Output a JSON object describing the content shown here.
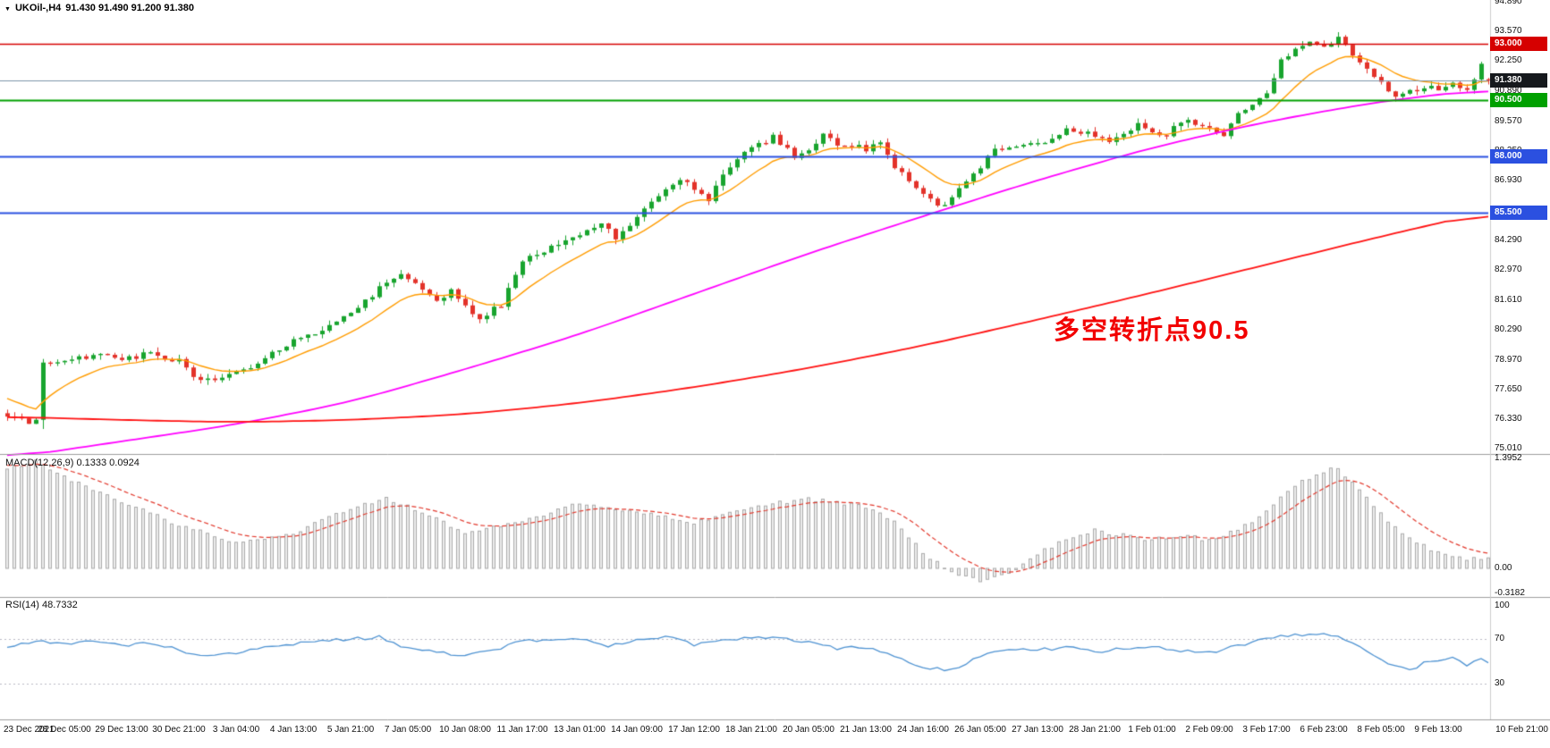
{
  "header": {
    "dropdown_icon": "▼",
    "symbol_period": "UKOil-,H4",
    "ohlc": "91.430 91.490 91.200 91.380"
  },
  "annotation": {
    "text": "多空转折点90.5",
    "color": "#f20000"
  },
  "panes": {
    "macd": {
      "label": "MACD(12,26,9) 0.1333 0.0924"
    },
    "rsi": {
      "label": "RSI(14) 48.7332"
    }
  },
  "colors": {
    "background": "#ffffff",
    "candle_up": "#18a42e",
    "candle_down": "#e3322a",
    "pane_border": "#9e9e9e",
    "axis_separator": "#cccccc",
    "axis_text": "#111111"
  },
  "chart_data": {
    "type": "candlestick",
    "symbol": "UKOil-",
    "timeframe": "H4",
    "current_ohlc": {
      "open": 91.43,
      "high": 91.49,
      "low": 91.2,
      "close": 91.38
    },
    "y_axis": {
      "ticks": [
        {
          "label": "94.890",
          "value": 94.89
        },
        {
          "label": "93.570",
          "value": 93.57
        },
        {
          "label": "92.250",
          "value": 92.25
        },
        {
          "label": "90.890",
          "value": 90.89
        },
        {
          "label": "89.570",
          "value": 89.57
        },
        {
          "label": "88.250",
          "value": 88.25
        },
        {
          "label": "86.930",
          "value": 86.93
        },
        {
          "label": "85.610",
          "value": 85.61
        },
        {
          "label": "84.290",
          "value": 84.29
        },
        {
          "label": "82.970",
          "value": 82.97
        },
        {
          "label": "81.610",
          "value": 81.61
        },
        {
          "label": "80.290",
          "value": 80.29
        },
        {
          "label": "78.970",
          "value": 78.97
        },
        {
          "label": "77.650",
          "value": 77.65
        },
        {
          "label": "76.330",
          "value": 76.33
        },
        {
          "label": "75.010",
          "value": 75.01
        }
      ],
      "badges": [
        {
          "label": "93.000",
          "value": 93.0,
          "bg": "#d60000"
        },
        {
          "label": "91.380",
          "value": 91.38,
          "bg": "#16191d"
        },
        {
          "label": "90.500",
          "value": 90.5,
          "bg": "#00a000"
        },
        {
          "label": "88.000",
          "value": 88.0,
          "bg": "#2b50e0"
        },
        {
          "label": "85.500",
          "value": 85.5,
          "bg": "#2b50e0"
        }
      ]
    },
    "x_axis": {
      "candles_per_label": 8,
      "labels": [
        "23 Dec 2021",
        "28 Dec 05:00",
        "29 Dec 13:00",
        "30 Dec 21:00",
        "3 Jan 04:00",
        "4 Jan 13:00",
        "5 Jan 21:00",
        "7 Jan 05:00",
        "10 Jan 08:00",
        "11 Jan 17:00",
        "13 Jan 01:00",
        "14 Jan 09:00",
        "17 Jan 12:00",
        "18 Jan 21:00",
        "20 Jan 05:00",
        "21 Jan 13:00",
        "24 Jan 16:00",
        "26 Jan 05:00",
        "27 Jan 13:00",
        "28 Jan 21:00",
        "1 Feb 01:00",
        "2 Feb 09:00",
        "3 Feb 17:00",
        "6 Feb 23:00",
        "8 Feb 05:00",
        "9 Feb 13:00",
        "10 Feb 21:00"
      ]
    },
    "candles": {
      "count": 208,
      "path_anchors": [
        [
          0,
          76.45
        ],
        [
          2,
          76.3
        ],
        [
          4,
          76.2
        ],
        [
          5,
          78.85
        ],
        [
          8,
          78.95
        ],
        [
          12,
          79.15
        ],
        [
          16,
          79.0
        ],
        [
          20,
          79.25
        ],
        [
          24,
          78.95
        ],
        [
          26,
          78.25
        ],
        [
          29,
          78.05
        ],
        [
          32,
          78.35
        ],
        [
          36,
          79.05
        ],
        [
          40,
          79.85
        ],
        [
          44,
          80.35
        ],
        [
          48,
          81.05
        ],
        [
          52,
          82.15
        ],
        [
          55,
          82.9
        ],
        [
          57,
          82.45
        ],
        [
          60,
          81.65
        ],
        [
          62,
          82.05
        ],
        [
          64,
          81.3
        ],
        [
          66,
          80.85
        ],
        [
          69,
          81.45
        ],
        [
          72,
          83.3
        ],
        [
          76,
          83.95
        ],
        [
          80,
          84.6
        ],
        [
          83,
          85.05
        ],
        [
          85,
          84.35
        ],
        [
          88,
          85.35
        ],
        [
          92,
          86.5
        ],
        [
          94,
          86.9
        ],
        [
          96,
          86.6
        ],
        [
          98,
          86.05
        ],
        [
          100,
          87.3
        ],
        [
          104,
          88.35
        ],
        [
          107,
          88.85
        ],
        [
          110,
          88.05
        ],
        [
          112,
          88.35
        ],
        [
          114,
          88.95
        ],
        [
          116,
          88.5
        ],
        [
          120,
          88.35
        ],
        [
          122,
          88.75
        ],
        [
          124,
          87.6
        ],
        [
          128,
          86.3
        ],
        [
          130,
          85.75
        ],
        [
          132,
          86.15
        ],
        [
          136,
          87.5
        ],
        [
          138,
          88.3
        ],
        [
          144,
          88.55
        ],
        [
          148,
          89.2
        ],
        [
          152,
          89.0
        ],
        [
          154,
          88.65
        ],
        [
          158,
          89.45
        ],
        [
          162,
          88.95
        ],
        [
          164,
          89.6
        ],
        [
          168,
          89.2
        ],
        [
          170,
          88.95
        ],
        [
          172,
          89.9
        ],
        [
          176,
          90.9
        ],
        [
          178,
          92.3
        ],
        [
          180,
          92.85
        ],
        [
          182,
          93.05
        ],
        [
          184,
          92.9
        ],
        [
          186,
          93.2
        ],
        [
          188,
          92.6
        ],
        [
          190,
          92.0
        ],
        [
          192,
          91.2
        ],
        [
          194,
          90.65
        ],
        [
          196,
          90.95
        ],
        [
          198,
          91.1
        ],
        [
          200,
          91.0
        ],
        [
          202,
          91.35
        ],
        [
          204,
          90.85
        ],
        [
          206,
          92.1
        ],
        [
          207,
          91.38
        ]
      ]
    },
    "levels": [
      {
        "label": "93.000",
        "price": 93.0,
        "color": "#d60000",
        "width": 1.4
      },
      {
        "label": "91.380",
        "price": 91.38,
        "color": "#7d96aa",
        "width": 1,
        "role": "current-price"
      },
      {
        "label": "90.500",
        "price": 90.5,
        "color": "#00a000",
        "width": 2
      },
      {
        "label": "88.000",
        "price": 88.0,
        "color": "#2b50e0",
        "width": 2.2
      },
      {
        "label": "85.500",
        "price": 85.5,
        "color": "#2b50e0",
        "width": 2.2
      }
    ],
    "moving_averages": [
      {
        "name": "ma-fast",
        "color": "#ff9c00",
        "width": 1.4,
        "period": 12,
        "seed": 77.4
      },
      {
        "name": "ma-medium",
        "color": "#ff00ff",
        "width": 1.8,
        "anchors": [
          [
            0,
            74.6
          ],
          [
            16,
            75.35
          ],
          [
            32,
            76.1
          ],
          [
            48,
            77.1
          ],
          [
            64,
            78.55
          ],
          [
            80,
            80.1
          ],
          [
            96,
            81.9
          ],
          [
            112,
            83.7
          ],
          [
            128,
            85.35
          ],
          [
            144,
            86.95
          ],
          [
            160,
            88.4
          ],
          [
            176,
            89.55
          ],
          [
            192,
            90.45
          ],
          [
            207,
            91.0
          ]
        ]
      },
      {
        "name": "ma-slow",
        "color": "#ff1111",
        "width": 1.8,
        "anchors": [
          [
            0,
            76.45
          ],
          [
            16,
            76.3
          ],
          [
            32,
            76.2
          ],
          [
            48,
            76.3
          ],
          [
            64,
            76.55
          ],
          [
            80,
            77.05
          ],
          [
            96,
            77.75
          ],
          [
            112,
            78.6
          ],
          [
            128,
            79.6
          ],
          [
            144,
            80.75
          ],
          [
            160,
            81.95
          ],
          [
            176,
            83.2
          ],
          [
            192,
            84.45
          ],
          [
            207,
            85.55
          ]
        ]
      }
    ],
    "macd": {
      "params": "12,26,9",
      "main_value": 0.1333,
      "signal_value": 0.0924,
      "signal_seed": 1.32,
      "histogram_fill": "#ececec",
      "histogram_stroke": "#ababab",
      "signal_color": "#e23a2e",
      "axis_ticks": [
        {
          "label": "1.3952",
          "value": 1.3952
        },
        {
          "label": "0.00",
          "value": 0
        },
        {
          "label": "-0.3182",
          "value": -0.3182
        }
      ],
      "anchors": [
        [
          0,
          1.25
        ],
        [
          4,
          1.38
        ],
        [
          8,
          1.15
        ],
        [
          16,
          0.85
        ],
        [
          24,
          0.55
        ],
        [
          32,
          0.33
        ],
        [
          40,
          0.45
        ],
        [
          48,
          0.75
        ],
        [
          53,
          0.88
        ],
        [
          56,
          0.8
        ],
        [
          64,
          0.45
        ],
        [
          72,
          0.6
        ],
        [
          80,
          0.82
        ],
        [
          88,
          0.72
        ],
        [
          96,
          0.58
        ],
        [
          104,
          0.78
        ],
        [
          112,
          0.88
        ],
        [
          120,
          0.78
        ],
        [
          124,
          0.58
        ],
        [
          128,
          0.2
        ],
        [
          132,
          -0.05
        ],
        [
          136,
          -0.16
        ],
        [
          140,
          -0.05
        ],
        [
          144,
          0.18
        ],
        [
          148,
          0.38
        ],
        [
          152,
          0.48
        ],
        [
          156,
          0.42
        ],
        [
          160,
          0.36
        ],
        [
          164,
          0.42
        ],
        [
          168,
          0.36
        ],
        [
          172,
          0.48
        ],
        [
          176,
          0.72
        ],
        [
          180,
          1.05
        ],
        [
          184,
          1.22
        ],
        [
          186,
          1.28
        ],
        [
          188,
          1.08
        ],
        [
          192,
          0.68
        ],
        [
          196,
          0.38
        ],
        [
          200,
          0.2
        ],
        [
          204,
          0.12
        ],
        [
          207,
          0.1333
        ]
      ]
    },
    "rsi": {
      "period": 14,
      "value": 48.7332,
      "line_color": "#4f93d2",
      "levels": [
        70,
        30
      ],
      "axis_ticks": [
        {
          "label": "100",
          "value": 100
        },
        {
          "label": "70",
          "value": 70
        },
        {
          "label": "30",
          "value": 30
        }
      ],
      "anchors": [
        [
          0,
          62
        ],
        [
          4,
          68
        ],
        [
          8,
          66
        ],
        [
          12,
          69
        ],
        [
          16,
          64
        ],
        [
          20,
          67
        ],
        [
          24,
          60
        ],
        [
          28,
          55
        ],
        [
          32,
          57
        ],
        [
          36,
          63
        ],
        [
          40,
          66
        ],
        [
          44,
          68
        ],
        [
          48,
          70
        ],
        [
          52,
          72
        ],
        [
          56,
          62
        ],
        [
          60,
          58
        ],
        [
          64,
          55
        ],
        [
          68,
          60
        ],
        [
          72,
          70
        ],
        [
          76,
          68
        ],
        [
          80,
          71
        ],
        [
          84,
          64
        ],
        [
          88,
          69
        ],
        [
          92,
          72
        ],
        [
          96,
          65
        ],
        [
          100,
          68
        ],
        [
          104,
          72
        ],
        [
          108,
          70
        ],
        [
          112,
          68
        ],
        [
          116,
          62
        ],
        [
          120,
          63
        ],
        [
          124,
          55
        ],
        [
          128,
          45
        ],
        [
          132,
          42
        ],
        [
          136,
          55
        ],
        [
          140,
          62
        ],
        [
          144,
          60
        ],
        [
          148,
          63
        ],
        [
          152,
          58
        ],
        [
          156,
          62
        ],
        [
          160,
          63
        ],
        [
          164,
          60
        ],
        [
          168,
          58
        ],
        [
          172,
          64
        ],
        [
          176,
          70
        ],
        [
          180,
          74
        ],
        [
          184,
          75
        ],
        [
          186,
          72
        ],
        [
          188,
          68
        ],
        [
          192,
          52
        ],
        [
          194,
          45
        ],
        [
          196,
          42
        ],
        [
          198,
          48
        ],
        [
          200,
          50
        ],
        [
          202,
          53
        ],
        [
          204,
          46
        ],
        [
          206,
          52
        ],
        [
          207,
          48.7
        ]
      ]
    }
  }
}
